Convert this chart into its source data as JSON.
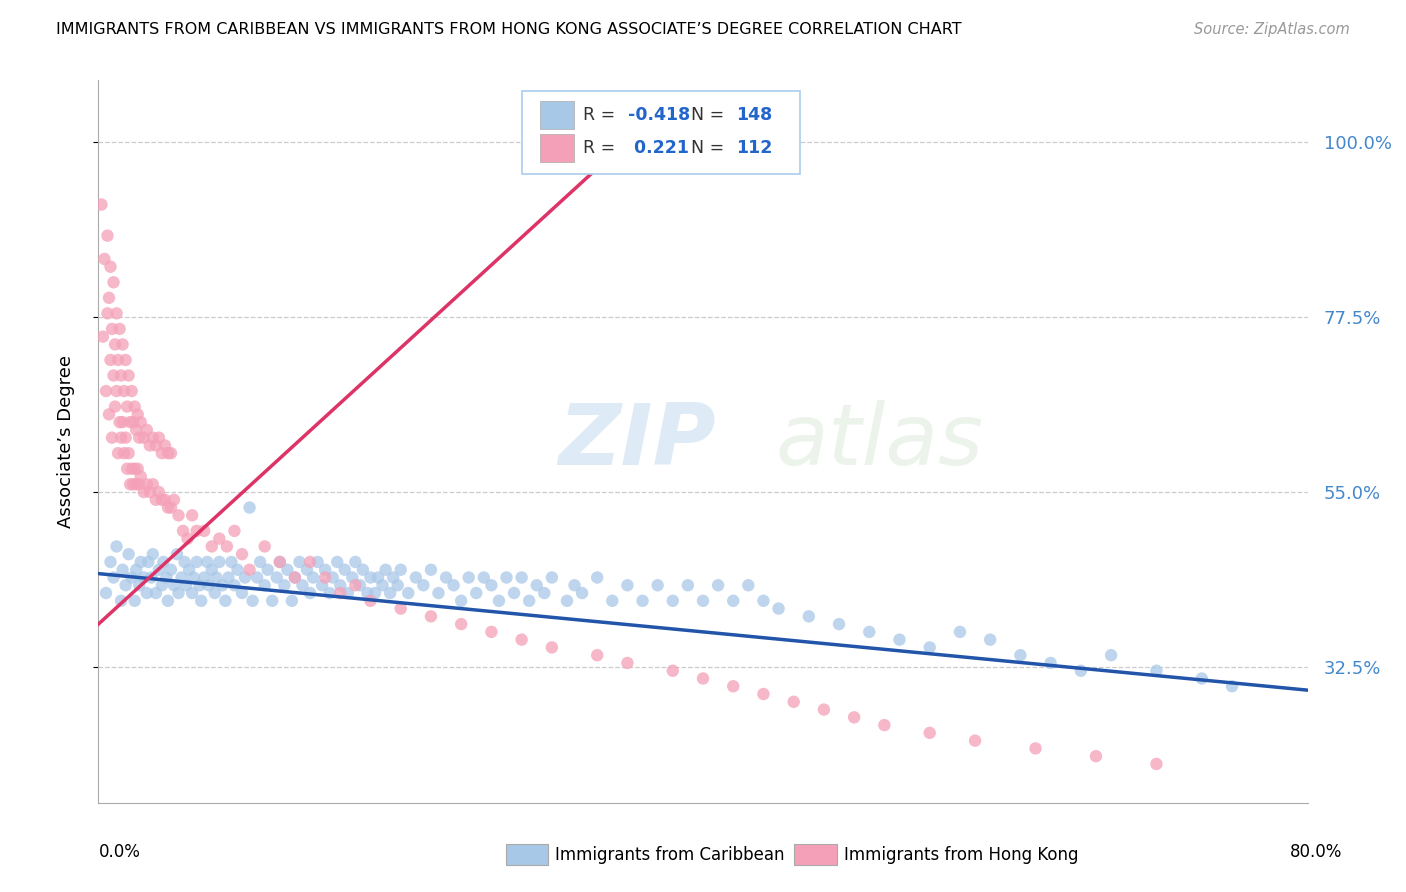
{
  "title": "IMMIGRANTS FROM CARIBBEAN VS IMMIGRANTS FROM HONG KONG ASSOCIATE’S DEGREE CORRELATION CHART",
  "source": "Source: ZipAtlas.com",
  "ylabel": "Associate’s Degree",
  "ytick_labels": [
    "32.5%",
    "55.0%",
    "77.5%",
    "100.0%"
  ],
  "ytick_values": [
    0.325,
    0.55,
    0.775,
    1.0
  ],
  "xlim": [
    0.0,
    0.8
  ],
  "ylim": [
    0.15,
    1.08
  ],
  "caribbean_color": "#a8c8e8",
  "hongkong_color": "#f4a0b8",
  "caribbean_line_color": "#2255aa",
  "hongkong_line_color": "#dd3366",
  "caribbean_dots_x": [
    0.005,
    0.008,
    0.01,
    0.012,
    0.015,
    0.016,
    0.018,
    0.02,
    0.022,
    0.024,
    0.025,
    0.027,
    0.028,
    0.03,
    0.032,
    0.033,
    0.035,
    0.036,
    0.038,
    0.04,
    0.042,
    0.043,
    0.045,
    0.046,
    0.048,
    0.05,
    0.052,
    0.053,
    0.055,
    0.057,
    0.058,
    0.06,
    0.062,
    0.063,
    0.065,
    0.067,
    0.068,
    0.07,
    0.072,
    0.073,
    0.075,
    0.077,
    0.078,
    0.08,
    0.082,
    0.084,
    0.086,
    0.088,
    0.09,
    0.092,
    0.095,
    0.097,
    0.1,
    0.102,
    0.105,
    0.107,
    0.11,
    0.112,
    0.115,
    0.118,
    0.12,
    0.123,
    0.125,
    0.128,
    0.13,
    0.133,
    0.135,
    0.138,
    0.14,
    0.142,
    0.145,
    0.148,
    0.15,
    0.153,
    0.155,
    0.158,
    0.16,
    0.163,
    0.165,
    0.168,
    0.17,
    0.173,
    0.175,
    0.178,
    0.18,
    0.183,
    0.185,
    0.188,
    0.19,
    0.193,
    0.195,
    0.198,
    0.2,
    0.205,
    0.21,
    0.215,
    0.22,
    0.225,
    0.23,
    0.235,
    0.24,
    0.245,
    0.25,
    0.255,
    0.26,
    0.265,
    0.27,
    0.275,
    0.28,
    0.285,
    0.29,
    0.295,
    0.3,
    0.31,
    0.315,
    0.32,
    0.33,
    0.34,
    0.35,
    0.36,
    0.37,
    0.38,
    0.39,
    0.4,
    0.41,
    0.42,
    0.43,
    0.44,
    0.45,
    0.47,
    0.49,
    0.51,
    0.53,
    0.55,
    0.57,
    0.59,
    0.61,
    0.63,
    0.65,
    0.67,
    0.7,
    0.73,
    0.75
  ],
  "caribbean_dots_y": [
    0.42,
    0.46,
    0.44,
    0.48,
    0.41,
    0.45,
    0.43,
    0.47,
    0.44,
    0.41,
    0.45,
    0.43,
    0.46,
    0.44,
    0.42,
    0.46,
    0.44,
    0.47,
    0.42,
    0.45,
    0.43,
    0.46,
    0.44,
    0.41,
    0.45,
    0.43,
    0.47,
    0.42,
    0.44,
    0.46,
    0.43,
    0.45,
    0.42,
    0.44,
    0.46,
    0.43,
    0.41,
    0.44,
    0.46,
    0.43,
    0.45,
    0.42,
    0.44,
    0.46,
    0.43,
    0.41,
    0.44,
    0.46,
    0.43,
    0.45,
    0.42,
    0.44,
    0.53,
    0.41,
    0.44,
    0.46,
    0.43,
    0.45,
    0.41,
    0.44,
    0.46,
    0.43,
    0.45,
    0.41,
    0.44,
    0.46,
    0.43,
    0.45,
    0.42,
    0.44,
    0.46,
    0.43,
    0.45,
    0.42,
    0.44,
    0.46,
    0.43,
    0.45,
    0.42,
    0.44,
    0.46,
    0.43,
    0.45,
    0.42,
    0.44,
    0.42,
    0.44,
    0.43,
    0.45,
    0.42,
    0.44,
    0.43,
    0.45,
    0.42,
    0.44,
    0.43,
    0.45,
    0.42,
    0.44,
    0.43,
    0.41,
    0.44,
    0.42,
    0.44,
    0.43,
    0.41,
    0.44,
    0.42,
    0.44,
    0.41,
    0.43,
    0.42,
    0.44,
    0.41,
    0.43,
    0.42,
    0.44,
    0.41,
    0.43,
    0.41,
    0.43,
    0.41,
    0.43,
    0.41,
    0.43,
    0.41,
    0.43,
    0.41,
    0.4,
    0.39,
    0.38,
    0.37,
    0.36,
    0.35,
    0.37,
    0.36,
    0.34,
    0.33,
    0.32,
    0.34,
    0.32,
    0.31,
    0.3
  ],
  "hongkong_dots_x": [
    0.002,
    0.003,
    0.004,
    0.005,
    0.006,
    0.006,
    0.007,
    0.007,
    0.008,
    0.008,
    0.009,
    0.009,
    0.01,
    0.01,
    0.011,
    0.011,
    0.012,
    0.012,
    0.013,
    0.013,
    0.014,
    0.014,
    0.015,
    0.015,
    0.016,
    0.016,
    0.017,
    0.017,
    0.018,
    0.018,
    0.019,
    0.019,
    0.02,
    0.02,
    0.021,
    0.021,
    0.022,
    0.022,
    0.023,
    0.023,
    0.024,
    0.024,
    0.025,
    0.025,
    0.026,
    0.026,
    0.027,
    0.027,
    0.028,
    0.028,
    0.03,
    0.03,
    0.032,
    0.032,
    0.034,
    0.034,
    0.036,
    0.036,
    0.038,
    0.038,
    0.04,
    0.04,
    0.042,
    0.042,
    0.044,
    0.044,
    0.046,
    0.046,
    0.048,
    0.048,
    0.05,
    0.053,
    0.056,
    0.059,
    0.062,
    0.065,
    0.07,
    0.075,
    0.08,
    0.085,
    0.09,
    0.095,
    0.1,
    0.11,
    0.12,
    0.13,
    0.14,
    0.15,
    0.16,
    0.17,
    0.18,
    0.2,
    0.22,
    0.24,
    0.26,
    0.28,
    0.3,
    0.33,
    0.35,
    0.38,
    0.4,
    0.42,
    0.44,
    0.46,
    0.48,
    0.5,
    0.52,
    0.55,
    0.58,
    0.62,
    0.66,
    0.7
  ],
  "hongkong_dots_y": [
    0.92,
    0.75,
    0.85,
    0.68,
    0.78,
    0.88,
    0.65,
    0.8,
    0.72,
    0.84,
    0.62,
    0.76,
    0.7,
    0.82,
    0.66,
    0.74,
    0.68,
    0.78,
    0.6,
    0.72,
    0.64,
    0.76,
    0.62,
    0.7,
    0.64,
    0.74,
    0.6,
    0.68,
    0.62,
    0.72,
    0.58,
    0.66,
    0.6,
    0.7,
    0.56,
    0.64,
    0.58,
    0.68,
    0.56,
    0.64,
    0.58,
    0.66,
    0.56,
    0.63,
    0.58,
    0.65,
    0.56,
    0.62,
    0.57,
    0.64,
    0.55,
    0.62,
    0.56,
    0.63,
    0.55,
    0.61,
    0.56,
    0.62,
    0.54,
    0.61,
    0.55,
    0.62,
    0.54,
    0.6,
    0.54,
    0.61,
    0.53,
    0.6,
    0.53,
    0.6,
    0.54,
    0.52,
    0.5,
    0.49,
    0.52,
    0.5,
    0.5,
    0.48,
    0.49,
    0.48,
    0.5,
    0.47,
    0.45,
    0.48,
    0.46,
    0.44,
    0.46,
    0.44,
    0.42,
    0.43,
    0.41,
    0.4,
    0.39,
    0.38,
    0.37,
    0.36,
    0.35,
    0.34,
    0.33,
    0.32,
    0.31,
    0.3,
    0.29,
    0.28,
    0.27,
    0.26,
    0.25,
    0.24,
    0.23,
    0.22,
    0.21,
    0.2
  ],
  "caribbean_trend_x": [
    0.0,
    0.8
  ],
  "caribbean_trend_y": [
    0.445,
    0.295
  ],
  "hongkong_trend_x": [
    0.0,
    0.36
  ],
  "hongkong_trend_y": [
    0.38,
    1.02
  ]
}
